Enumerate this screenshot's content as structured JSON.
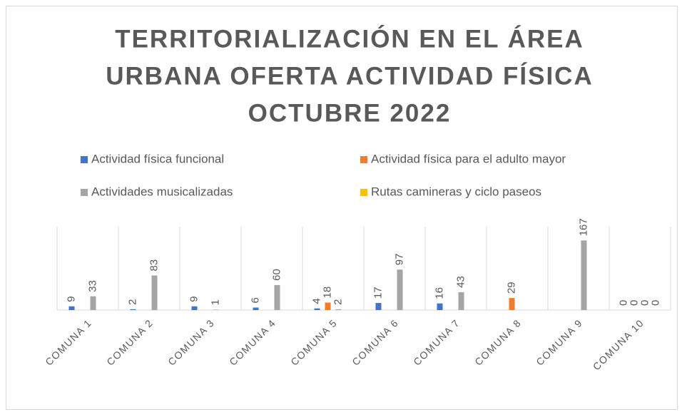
{
  "chart_data": {
    "type": "bar",
    "title": [
      "TERRITORIALIZACIÓN EN EL ÁREA",
      "URBANA OFERTA ACTIVIDAD FÍSICA",
      "OCTUBRE 2022"
    ],
    "categories": [
      "COMUNA 1",
      "COMUNA 2",
      "COMUNA 3",
      "COMUNA 4",
      "COMUNA 5",
      "COMUNA 6",
      "COMUNA 7",
      "COMUNA 8",
      "COMUNA 9",
      "COMUNA 10"
    ],
    "series": [
      {
        "name": "Actividad física funcional",
        "color": "#4472c4",
        "values": [
          9,
          2,
          9,
          6,
          4,
          17,
          16,
          null,
          null,
          0
        ]
      },
      {
        "name": "Actividad física para el adulto mayor",
        "color": "#ed7d31",
        "values": [
          null,
          null,
          null,
          null,
          18,
          null,
          null,
          29,
          null,
          0
        ]
      },
      {
        "name": "Actividades musicalizadas",
        "color": "#a5a5a5",
        "values": [
          33,
          83,
          1,
          60,
          2,
          97,
          43,
          null,
          167,
          0
        ]
      },
      {
        "name": "Rutas camineras y ciclo paseos",
        "color": "#ffc000",
        "values": [
          null,
          null,
          null,
          null,
          null,
          null,
          null,
          null,
          null,
          0
        ]
      }
    ],
    "ylim": [
      0,
      200
    ],
    "legend": "top"
  }
}
